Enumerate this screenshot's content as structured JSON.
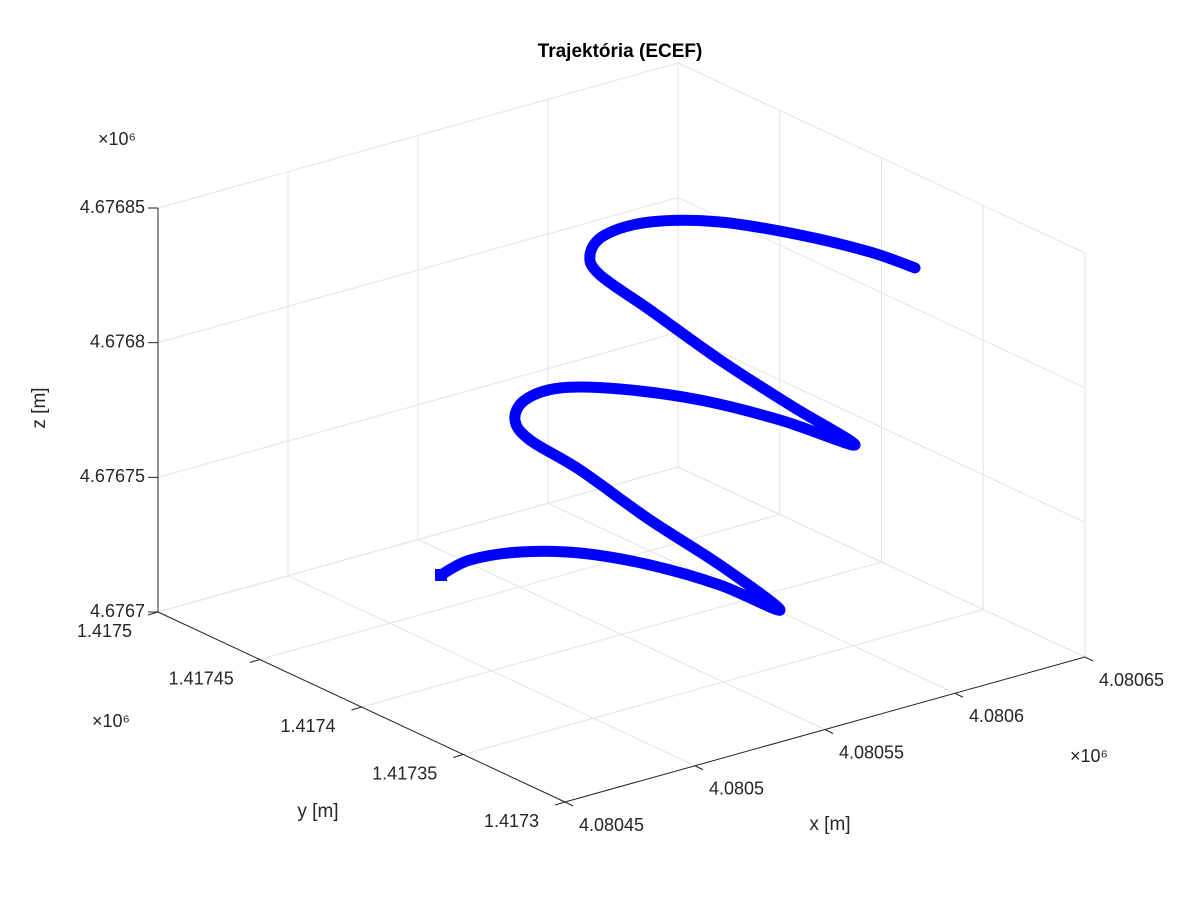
{
  "chart_data": {
    "type": "line3d",
    "title": "Trajektória (ECEF)",
    "xlabel": "x [m]",
    "ylabel": "y [m]",
    "zlabel": "z [m]",
    "x_exponent": "×10⁶",
    "y_exponent": "×10⁶",
    "z_exponent": "×10⁶",
    "xlim": [
      4.08045,
      4.08065
    ],
    "ylim": [
      1.4173,
      1.4175
    ],
    "zlim": [
      4.6767,
      4.67685
    ],
    "xticks": [
      4.08045,
      4.0805,
      4.08055,
      4.0806,
      4.08065
    ],
    "yticks": [
      1.4173,
      1.41735,
      1.4174,
      1.41745,
      1.4175
    ],
    "zticks": [
      4.6767,
      4.67675,
      4.6768,
      4.67685
    ],
    "grid": true,
    "series": [
      {
        "color": "#0000ff",
        "marker": "square",
        "x": [
          4.08048058,
          4.08049642,
          4.08051408,
          4.08053092,
          4.08054844,
          4.0805644,
          4.08057966,
          4.08056284,
          4.0805453,
          4.08052934,
          4.08051792,
          4.08051686,
          4.08052072,
          4.08052946,
          4.08054474,
          4.08056454,
          4.08058592,
          4.0806085,
          4.08058976,
          4.08057224,
          4.0805547,
          4.0805433,
          4.08054414,
          4.08054992,
          4.08056566,
          4.08058162,
          4.080603,
          4.08062054,
          4.08063158
        ],
        "y": [
          1.4174,
          1.417406,
          1.417404,
          1.417396,
          1.417384,
          1.41737,
          1.41736,
          1.417368,
          1.41738,
          1.417394,
          1.417404,
          1.41741,
          1.41741,
          1.417404,
          1.417394,
          1.41738,
          1.417368,
          1.41736,
          1.417368,
          1.41738,
          1.417392,
          1.417402,
          1.417408,
          1.417408,
          1.417406,
          1.417392,
          1.41738,
          1.417368,
          1.41736
        ],
        "z": [
          4.67674079,
          4.67673996,
          4.6767389,
          4.67673681,
          4.67673188,
          4.67672508,
          4.67671523,
          4.67673363,
          4.67675084,
          4.67676876,
          4.67677944,
          4.67678504,
          4.67679143,
          4.67679564,
          4.67679468,
          4.67679021,
          4.67678126,
          4.67676872,
          4.6767858,
          4.67680299,
          4.67682204,
          4.67683458,
          4.67683967,
          4.67684555,
          4.67684682,
          4.67684747,
          4.67684112,
          4.67683431,
          4.67682824
        ]
      }
    ]
  }
}
